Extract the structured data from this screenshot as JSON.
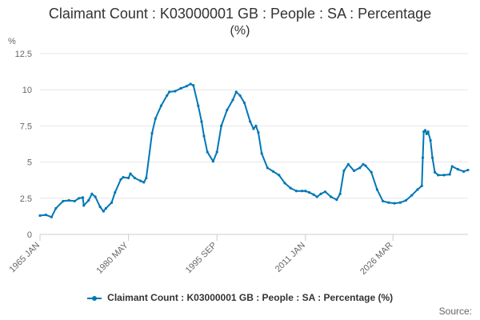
{
  "chart_data": {
    "type": "line",
    "title": "Claimant Count : K03000001 GB : People : SA : Percentage (%)",
    "title_line1": "Claimant Count : K03000001 GB : People : SA : Percentage",
    "title_line2": "(%)",
    "ylabel": "%",
    "ylim": [
      0,
      12.5
    ],
    "yticks": [
      "0",
      "2.5",
      "5",
      "7.5",
      "10",
      "12.5"
    ],
    "xticks": [
      "1965 JAN",
      "1980 MAY",
      "1995 SEP",
      "2011 JAN",
      "2026 MAR"
    ],
    "grid": true,
    "legend_position": "bottom",
    "color": "#0077b5",
    "series": [
      {
        "name": "Claimant Count : K03000001 GB : People : SA : Percentage (%)",
        "points": [
          [
            "1965-01",
            1.3
          ],
          [
            "1966-01",
            1.35
          ],
          [
            "1967-01",
            1.2
          ],
          [
            "1967-10",
            1.8
          ],
          [
            "1969-01",
            2.3
          ],
          [
            "1970-01",
            2.35
          ],
          [
            "1971-01",
            2.3
          ],
          [
            "1971-10",
            2.5
          ],
          [
            "1972-06",
            2.55
          ],
          [
            "1972-08",
            2.0
          ],
          [
            "1973-06",
            2.35
          ],
          [
            "1974-01",
            2.8
          ],
          [
            "1974-08",
            2.6
          ],
          [
            "1975-06",
            1.9
          ],
          [
            "1976-01",
            1.6
          ],
          [
            "1976-06",
            1.8
          ],
          [
            "1977-06",
            2.2
          ],
          [
            "1978-01",
            2.9
          ],
          [
            "1979-01",
            3.8
          ],
          [
            "1979-06",
            3.95
          ],
          [
            "1980-05",
            3.9
          ],
          [
            "1980-09",
            4.2
          ],
          [
            "1981-06",
            3.9
          ],
          [
            "1982-06",
            3.7
          ],
          [
            "1983-01",
            3.6
          ],
          [
            "1983-06",
            3.9
          ],
          [
            "1984-06",
            7.0
          ],
          [
            "1985-01",
            8.0
          ],
          [
            "1986-01",
            8.9
          ],
          [
            "1987-01",
            9.6
          ],
          [
            "1987-06",
            9.85
          ],
          [
            "1988-06",
            9.9
          ],
          [
            "1989-06",
            10.1
          ],
          [
            "1990-06",
            10.25
          ],
          [
            "1991-02",
            10.4
          ],
          [
            "1991-08",
            10.3
          ],
          [
            "1992-06",
            8.9
          ],
          [
            "1993-01",
            7.8
          ],
          [
            "1993-06",
            6.8
          ],
          [
            "1994-01",
            5.7
          ],
          [
            "1995-01",
            5.05
          ],
          [
            "1995-09",
            5.7
          ],
          [
            "1996-06",
            7.5
          ],
          [
            "1997-06",
            8.6
          ],
          [
            "1998-06",
            9.3
          ],
          [
            "1999-01",
            9.85
          ],
          [
            "1999-09",
            9.6
          ],
          [
            "2000-06",
            9.1
          ],
          [
            "2001-06",
            7.8
          ],
          [
            "2002-01",
            7.3
          ],
          [
            "2002-06",
            7.5
          ],
          [
            "2002-11",
            7.05
          ],
          [
            "2003-06",
            5.6
          ],
          [
            "2004-06",
            4.6
          ],
          [
            "2005-06",
            4.35
          ],
          [
            "2006-06",
            4.1
          ],
          [
            "2007-06",
            3.55
          ],
          [
            "2008-06",
            3.2
          ],
          [
            "2009-06",
            3.0
          ],
          [
            "2010-06",
            3.0
          ],
          [
            "2011-01",
            3.0
          ],
          [
            "2011-09",
            2.9
          ],
          [
            "2012-06",
            2.75
          ],
          [
            "2013-01",
            2.6
          ],
          [
            "2013-09",
            2.8
          ],
          [
            "2014-06",
            2.95
          ],
          [
            "2015-06",
            2.6
          ],
          [
            "2016-06",
            2.4
          ],
          [
            "2017-01",
            2.8
          ],
          [
            "2017-09",
            4.4
          ],
          [
            "2018-06",
            4.85
          ],
          [
            "2019-06",
            4.4
          ],
          [
            "2020-06",
            4.6
          ],
          [
            "2021-01",
            4.85
          ],
          [
            "2021-06",
            4.75
          ],
          [
            "2022-06",
            4.3
          ],
          [
            "2023-06",
            3.1
          ],
          [
            "2024-06",
            2.3
          ],
          [
            "2025-06",
            2.2
          ],
          [
            "2026-06",
            2.15
          ],
          [
            "2027-06",
            2.2
          ],
          [
            "2028-06",
            2.35
          ],
          [
            "2029-06",
            2.7
          ],
          [
            "2030-06",
            3.1
          ],
          [
            "2031-03",
            3.35
          ],
          [
            "2031-05",
            5.3
          ],
          [
            "2031-07",
            7.1
          ],
          [
            "2031-10",
            7.2
          ],
          [
            "2032-01",
            6.95
          ],
          [
            "2032-04",
            7.1
          ],
          [
            "2032-09",
            6.5
          ],
          [
            "2033-01",
            5.3
          ],
          [
            "2033-06",
            4.3
          ],
          [
            "2034-01",
            4.1
          ],
          [
            "2035-01",
            4.1
          ],
          [
            "2036-01",
            4.15
          ],
          [
            "2036-06",
            4.7
          ],
          [
            "2037-06",
            4.5
          ],
          [
            "2038-06",
            4.35
          ],
          [
            "2039-03",
            4.45
          ]
        ]
      }
    ],
    "source_label": "Source:"
  }
}
